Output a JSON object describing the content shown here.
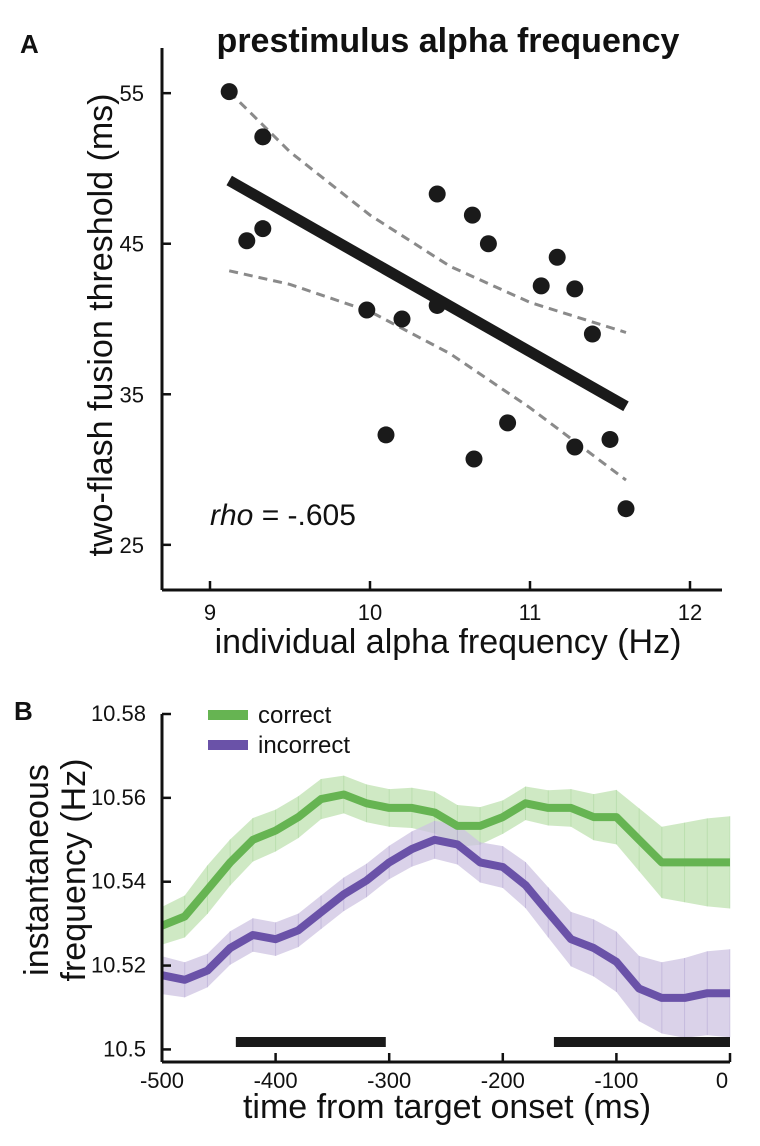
{
  "chart_data": [
    {
      "panel": "A",
      "type": "scatter",
      "title": "prestimulus alpha frequency",
      "xlabel": "individual alpha frequency (Hz)",
      "ylabel": "two-flash fusion threshold (ms)",
      "xlim": [
        8.7,
        12.2
      ],
      "ylim": [
        22,
        58
      ],
      "xticks": [
        9,
        10,
        11,
        12
      ],
      "yticks": [
        25,
        35,
        45,
        55
      ],
      "points": [
        {
          "x": 9.12,
          "y": 55.1
        },
        {
          "x": 9.33,
          "y": 52.1
        },
        {
          "x": 9.23,
          "y": 45.2
        },
        {
          "x": 9.33,
          "y": 46.0
        },
        {
          "x": 9.98,
          "y": 40.6
        },
        {
          "x": 10.1,
          "y": 32.3
        },
        {
          "x": 10.2,
          "y": 40.0
        },
        {
          "x": 10.42,
          "y": 40.9
        },
        {
          "x": 10.42,
          "y": 48.3
        },
        {
          "x": 10.64,
          "y": 46.9
        },
        {
          "x": 10.74,
          "y": 45.0
        },
        {
          "x": 10.65,
          "y": 30.7
        },
        {
          "x": 10.86,
          "y": 33.1
        },
        {
          "x": 11.07,
          "y": 42.2
        },
        {
          "x": 11.17,
          "y": 44.1
        },
        {
          "x": 11.28,
          "y": 42.0
        },
        {
          "x": 11.28,
          "y": 31.5
        },
        {
          "x": 11.39,
          "y": 39.0
        },
        {
          "x": 11.5,
          "y": 32.0
        },
        {
          "x": 11.6,
          "y": 27.4
        }
      ],
      "fit": {
        "x": [
          9.12,
          11.6
        ],
        "y": [
          49.2,
          34.2
        ]
      },
      "ci_upper": {
        "x": [
          9.12,
          9.5,
          10.0,
          10.5,
          11.0,
          11.6
        ],
        "y": [
          55.1,
          51.1,
          46.9,
          43.5,
          41.1,
          39.1
        ]
      },
      "ci_lower": {
        "x": [
          9.12,
          9.5,
          10.0,
          10.5,
          11.0,
          11.6
        ],
        "y": [
          43.2,
          42.3,
          40.5,
          37.7,
          34.1,
          29.3
        ]
      },
      "annotation_italic": "rho",
      "annotation_value": " = -.605",
      "colors": {
        "points": "#1a1a1a",
        "fit": "#1a1a1a",
        "ci": "#8a8a8a"
      }
    },
    {
      "panel": "B",
      "type": "line",
      "xlabel": "time from target onset (ms)",
      "ylabel_line1": "instantaneous",
      "ylabel_line2": "frequency (Hz)",
      "xlim": [
        -500,
        0
      ],
      "ylim": [
        10.497,
        10.58
      ],
      "xticks": [
        -500,
        -400,
        -300,
        -200,
        -100,
        0
      ],
      "xtick_labels": [
        "-500",
        "-400",
        "-300",
        "-200",
        "-100",
        "0"
      ],
      "yticks": [
        10.5,
        10.52,
        10.54,
        10.56,
        10.58
      ],
      "ytick_labels": [
        "10.5",
        "10.52",
        "10.54",
        "10.56",
        "10.58"
      ],
      "x": [
        -500,
        -480,
        -460,
        -440,
        -420,
        -400,
        -380,
        -360,
        -340,
        -320,
        -300,
        -280,
        -260,
        -240,
        -220,
        -200,
        -180,
        -160,
        -140,
        -120,
        -100,
        -80,
        -60,
        -40,
        -20,
        0
      ],
      "series": [
        {
          "name": "correct",
          "color": "#66b452",
          "band_color": "#bfe2b0",
          "values": [
            10.5295,
            10.5317,
            10.5381,
            10.5446,
            10.55,
            10.5522,
            10.5554,
            10.5597,
            10.5608,
            10.5587,
            10.5576,
            10.5576,
            10.5565,
            10.5533,
            10.5533,
            10.5554,
            10.5587,
            10.5576,
            10.5576,
            10.5554,
            10.5554,
            10.55,
            10.5446,
            10.5446,
            10.5446,
            10.5446
          ],
          "err": [
            0.0045,
            0.005,
            0.0058,
            0.0055,
            0.0052,
            0.005,
            0.005,
            0.0048,
            0.0045,
            0.0045,
            0.0045,
            0.0048,
            0.005,
            0.005,
            0.0045,
            0.004,
            0.004,
            0.0042,
            0.0045,
            0.0055,
            0.0065,
            0.0075,
            0.0085,
            0.0095,
            0.0105,
            0.011
          ]
        },
        {
          "name": "incorrect",
          "color": "#6a52a8",
          "band_color": "#cdc3e2",
          "values": [
            10.5177,
            10.5166,
            10.5188,
            10.5242,
            10.5273,
            10.5263,
            10.5284,
            10.5327,
            10.537,
            10.5403,
            10.5446,
            10.5478,
            10.55,
            10.5489,
            10.5446,
            10.5435,
            10.5392,
            10.5327,
            10.5263,
            10.5242,
            10.5209,
            10.5145,
            10.5123,
            10.5123,
            10.5134,
            10.5134
          ],
          "err": [
            0.0045,
            0.0042,
            0.004,
            0.004,
            0.004,
            0.004,
            0.004,
            0.004,
            0.004,
            0.004,
            0.004,
            0.0042,
            0.0045,
            0.0048,
            0.0048,
            0.005,
            0.0055,
            0.006,
            0.0065,
            0.0068,
            0.0072,
            0.0078,
            0.0085,
            0.0095,
            0.01,
            0.0105
          ]
        }
      ],
      "significance_bars": [
        [
          -435,
          -303
        ],
        [
          -155,
          0
        ]
      ],
      "legend_position": "top-left"
    }
  ],
  "labels": {
    "panel_a": "A",
    "panel_b": "B"
  }
}
